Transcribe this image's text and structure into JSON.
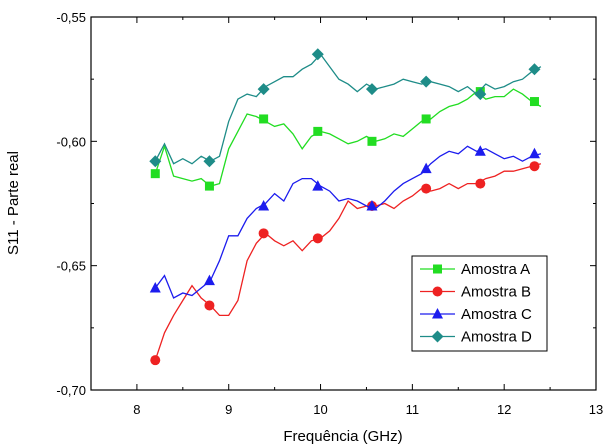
{
  "chart_data": {
    "type": "line",
    "xlabel": "Frequência (GHz)",
    "ylabel": "S11 - Parte real",
    "xlim": [
      7.5,
      13
    ],
    "ylim": [
      -0.7,
      -0.55
    ],
    "xticks": [
      8,
      9,
      10,
      11,
      12,
      13
    ],
    "xtick_labels": [
      "8",
      "9",
      "10",
      "11",
      "12",
      "13"
    ],
    "yticks": [
      -0.7,
      -0.65,
      -0.6,
      -0.55
    ],
    "ytick_labels": [
      "-0,70",
      "-0,65",
      "-0,60",
      "-0,55"
    ],
    "legend_position": "lower-right",
    "grid": false,
    "series": [
      {
        "name": "Amostra A",
        "color": "#22dd22",
        "marker": "square",
        "x": [
          8.2,
          8.3,
          8.4,
          8.5,
          8.6,
          8.7,
          8.8,
          8.9,
          9.0,
          9.1,
          9.2,
          9.3,
          9.4,
          9.5,
          9.6,
          9.7,
          9.8,
          9.9,
          10.0,
          10.1,
          10.2,
          10.3,
          10.4,
          10.5,
          10.6,
          10.7,
          10.8,
          10.9,
          11.0,
          11.1,
          11.2,
          11.3,
          11.4,
          11.5,
          11.6,
          11.7,
          11.8,
          11.9,
          12.0,
          12.1,
          12.2,
          12.3,
          12.4
        ],
        "y": [
          -0.613,
          -0.602,
          -0.614,
          -0.615,
          -0.616,
          -0.615,
          -0.618,
          -0.617,
          -0.603,
          -0.596,
          -0.589,
          -0.59,
          -0.592,
          -0.594,
          -0.593,
          -0.597,
          -0.603,
          -0.598,
          -0.596,
          -0.597,
          -0.599,
          -0.601,
          -0.6,
          -0.598,
          -0.6,
          -0.599,
          -0.597,
          -0.598,
          -0.595,
          -0.592,
          -0.591,
          -0.588,
          -0.586,
          -0.585,
          -0.583,
          -0.58,
          -0.583,
          -0.582,
          -0.582,
          -0.579,
          -0.581,
          -0.584,
          -0.586
        ],
        "markers_x": [
          8.2,
          8.79,
          9.38,
          9.97,
          10.56,
          11.15,
          11.74,
          12.33
        ],
        "markers_y": [
          -0.613,
          -0.618,
          -0.591,
          -0.596,
          -0.6,
          -0.591,
          -0.58,
          -0.584
        ]
      },
      {
        "name": "Amostra B",
        "color": "#ee2222",
        "marker": "circle",
        "x": [
          8.2,
          8.3,
          8.4,
          8.5,
          8.6,
          8.7,
          8.8,
          8.9,
          9.0,
          9.1,
          9.2,
          9.3,
          9.4,
          9.5,
          9.6,
          9.7,
          9.8,
          9.9,
          10.0,
          10.1,
          10.2,
          10.3,
          10.4,
          10.5,
          10.6,
          10.7,
          10.8,
          10.9,
          11.0,
          11.1,
          11.2,
          11.3,
          11.4,
          11.5,
          11.6,
          11.7,
          11.8,
          11.9,
          12.0,
          12.1,
          12.2,
          12.3,
          12.4
        ],
        "y": [
          -0.688,
          -0.677,
          -0.67,
          -0.664,
          -0.658,
          -0.663,
          -0.666,
          -0.67,
          -0.67,
          -0.664,
          -0.648,
          -0.641,
          -0.637,
          -0.64,
          -0.642,
          -0.64,
          -0.644,
          -0.64,
          -0.639,
          -0.636,
          -0.631,
          -0.624,
          -0.627,
          -0.626,
          -0.626,
          -0.625,
          -0.627,
          -0.624,
          -0.622,
          -0.619,
          -0.62,
          -0.619,
          -0.617,
          -0.619,
          -0.617,
          -0.617,
          -0.615,
          -0.614,
          -0.612,
          -0.612,
          -0.611,
          -0.61,
          -0.609
        ],
        "markers_x": [
          8.2,
          8.79,
          9.38,
          9.97,
          10.56,
          11.15,
          11.74,
          12.33
        ],
        "markers_y": [
          -0.688,
          -0.666,
          -0.637,
          -0.639,
          -0.626,
          -0.619,
          -0.617,
          -0.61
        ]
      },
      {
        "name": "Amostra C",
        "color": "#1c1cee",
        "marker": "triangle",
        "x": [
          8.2,
          8.3,
          8.4,
          8.5,
          8.6,
          8.7,
          8.8,
          8.9,
          9.0,
          9.1,
          9.2,
          9.3,
          9.4,
          9.5,
          9.6,
          9.7,
          9.8,
          9.9,
          10.0,
          10.1,
          10.2,
          10.3,
          10.4,
          10.5,
          10.6,
          10.7,
          10.8,
          10.9,
          11.0,
          11.1,
          11.2,
          11.3,
          11.4,
          11.5,
          11.6,
          11.7,
          11.8,
          11.9,
          12.0,
          12.1,
          12.2,
          12.3,
          12.4
        ],
        "y": [
          -0.659,
          -0.654,
          -0.663,
          -0.661,
          -0.662,
          -0.659,
          -0.656,
          -0.648,
          -0.638,
          -0.638,
          -0.631,
          -0.627,
          -0.625,
          -0.621,
          -0.624,
          -0.617,
          -0.615,
          -0.615,
          -0.618,
          -0.62,
          -0.624,
          -0.623,
          -0.624,
          -0.626,
          -0.627,
          -0.624,
          -0.62,
          -0.617,
          -0.615,
          -0.613,
          -0.609,
          -0.606,
          -0.604,
          -0.605,
          -0.602,
          -0.604,
          -0.603,
          -0.605,
          -0.607,
          -0.606,
          -0.608,
          -0.606,
          -0.605
        ],
        "markers_x": [
          8.2,
          8.79,
          9.38,
          9.97,
          10.56,
          11.15,
          11.74,
          12.33
        ],
        "markers_y": [
          -0.659,
          -0.656,
          -0.626,
          -0.618,
          -0.626,
          -0.611,
          -0.604,
          -0.605
        ]
      },
      {
        "name": "Amostra D",
        "color": "#1e8c88",
        "marker": "diamond",
        "x": [
          8.2,
          8.3,
          8.4,
          8.5,
          8.6,
          8.7,
          8.8,
          8.9,
          9.0,
          9.1,
          9.2,
          9.3,
          9.4,
          9.5,
          9.6,
          9.7,
          9.8,
          9.9,
          10.0,
          10.1,
          10.2,
          10.3,
          10.4,
          10.5,
          10.6,
          10.7,
          10.8,
          10.9,
          11.0,
          11.1,
          11.2,
          11.3,
          11.4,
          11.5,
          11.6,
          11.7,
          11.8,
          11.9,
          12.0,
          12.1,
          12.2,
          12.3,
          12.4
        ],
        "y": [
          -0.608,
          -0.601,
          -0.609,
          -0.607,
          -0.609,
          -0.606,
          -0.608,
          -0.606,
          -0.592,
          -0.583,
          -0.581,
          -0.582,
          -0.578,
          -0.576,
          -0.574,
          -0.574,
          -0.571,
          -0.569,
          -0.565,
          -0.57,
          -0.575,
          -0.577,
          -0.58,
          -0.577,
          -0.579,
          -0.578,
          -0.577,
          -0.575,
          -0.576,
          -0.577,
          -0.576,
          -0.577,
          -0.578,
          -0.58,
          -0.578,
          -0.581,
          -0.577,
          -0.579,
          -0.578,
          -0.576,
          -0.575,
          -0.572,
          -0.57
        ],
        "markers_x": [
          8.2,
          8.79,
          9.38,
          9.97,
          10.56,
          11.15,
          11.74,
          12.33
        ],
        "markers_y": [
          -0.608,
          -0.608,
          -0.579,
          -0.565,
          -0.579,
          -0.576,
          -0.581,
          -0.571
        ]
      }
    ]
  }
}
